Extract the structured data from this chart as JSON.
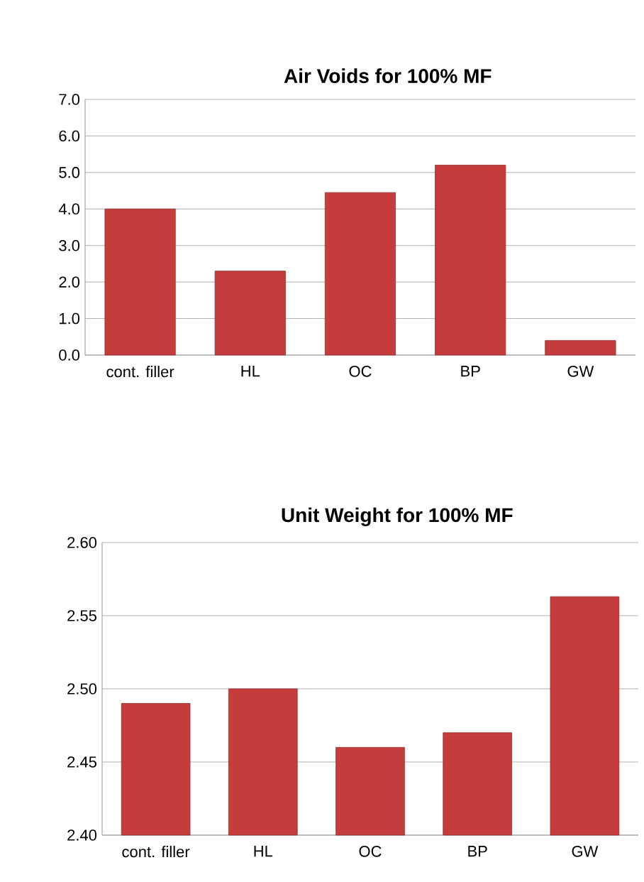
{
  "chart_data": [
    {
      "type": "bar",
      "title": "Air Voids for 100% MF",
      "categories": [
        "cont. filler",
        "HL",
        "OC",
        "BP",
        "GW"
      ],
      "values": [
        4.0,
        2.3,
        4.45,
        5.2,
        0.4
      ],
      "color": "#c43c3b",
      "ylim": [
        0,
        7
      ],
      "yticks": [
        {
          "value": 0,
          "label": "0.0"
        },
        {
          "value": 1,
          "label": "1.0"
        },
        {
          "value": 2,
          "label": "2.0"
        },
        {
          "value": 3,
          "label": "3.0"
        },
        {
          "value": 4,
          "label": "4.0"
        },
        {
          "value": 5,
          "label": "5.0"
        },
        {
          "value": 6,
          "label": "6.0"
        },
        {
          "value": 7,
          "label": "7.0"
        }
      ],
      "grid": "y"
    },
    {
      "type": "bar",
      "title": "Unit Weight for 100% MF",
      "categories": [
        "cont. filler",
        "HL",
        "OC",
        "BP",
        "GW"
      ],
      "values": [
        2.49,
        2.5,
        2.46,
        2.47,
        2.563
      ],
      "color": "#c43c3b",
      "ylim": [
        2.4,
        2.6
      ],
      "yticks": [
        {
          "value": 2.4,
          "label": "2.40"
        },
        {
          "value": 2.45,
          "label": "2.45"
        },
        {
          "value": 2.5,
          "label": "2.50"
        },
        {
          "value": 2.55,
          "label": "2.55"
        },
        {
          "value": 2.6,
          "label": "2.60"
        }
      ],
      "grid": "y"
    }
  ]
}
